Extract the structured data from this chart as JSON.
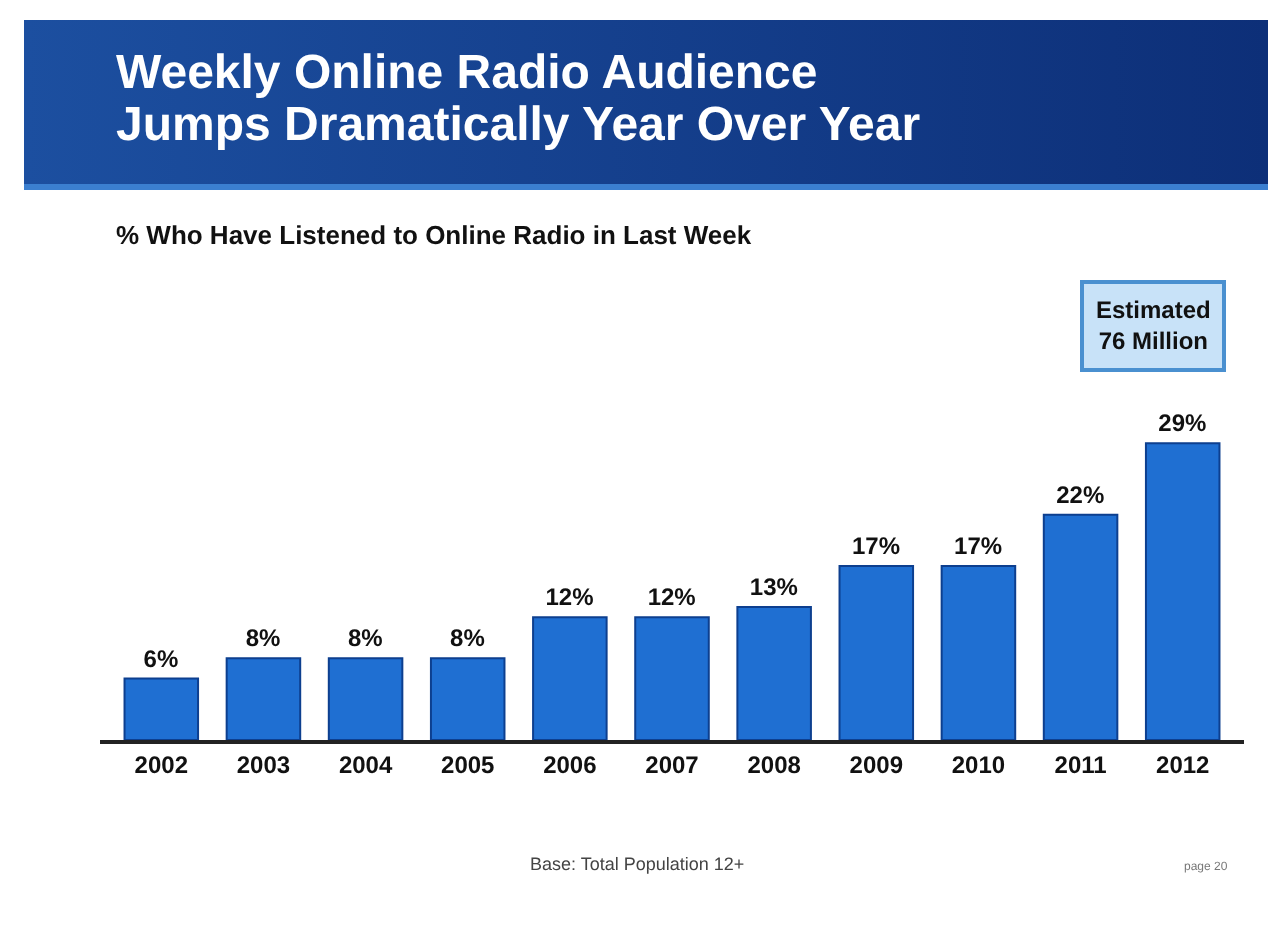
{
  "chart_data": {
    "type": "bar",
    "title": "Weekly Online Radio Audience\nJumps Dramatically Year Over Year",
    "subtitle": "% Who Have Listened to Online Radio in Last Week",
    "categories": [
      "2002",
      "2003",
      "2004",
      "2005",
      "2006",
      "2007",
      "2008",
      "2009",
      "2010",
      "2011",
      "2012"
    ],
    "values": [
      6,
      8,
      8,
      8,
      12,
      12,
      13,
      17,
      17,
      22,
      29
    ],
    "value_labels": [
      "6%",
      "8%",
      "8%",
      "8%",
      "12%",
      "12%",
      "13%",
      "17%",
      "17%",
      "22%",
      "29%"
    ],
    "color": "#1f6fd2",
    "annotations": [
      "Estimated\n76 Million",
      "Base: Total Population 12+",
      "page 20"
    ]
  }
}
